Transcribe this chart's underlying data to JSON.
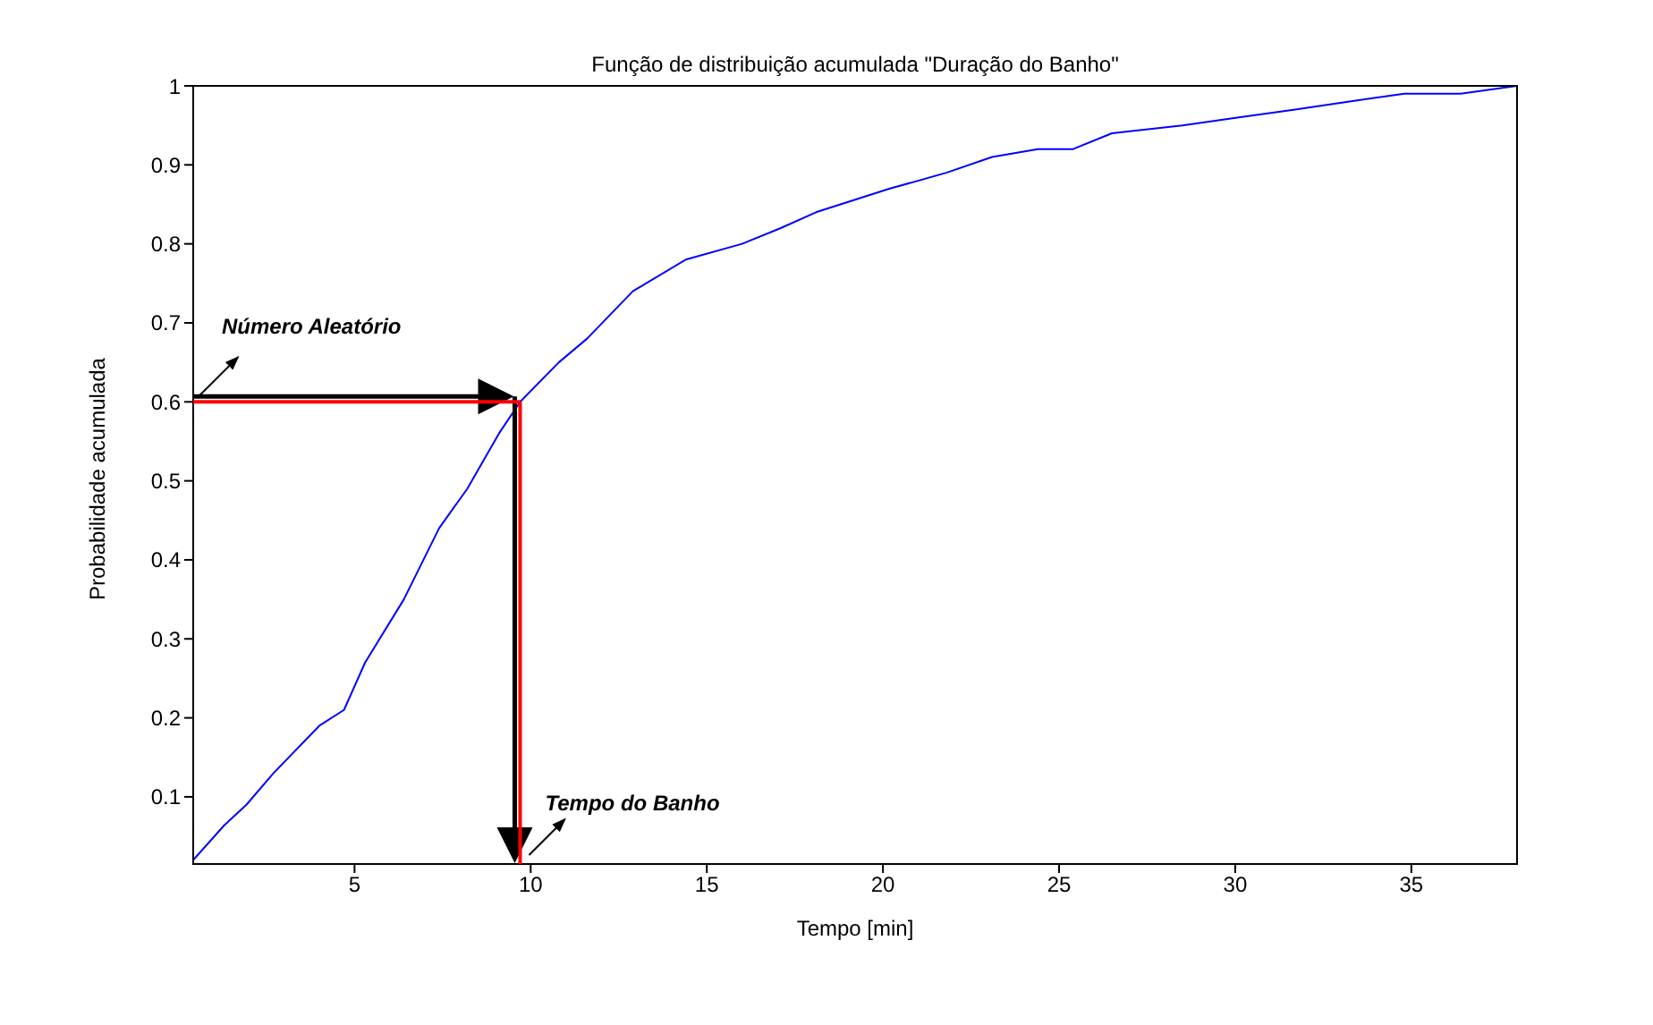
{
  "chart_data": {
    "type": "line",
    "title": "Função de distribuição acumulada \"Duração do Banho\"",
    "xlabel": "Tempo [min]",
    "ylabel": "Probabilidade acumulada",
    "x": [
      0.42,
      1.3,
      1.93,
      2.7,
      4.0,
      4.7,
      5.3,
      6.4,
      7.4,
      8.2,
      9.1,
      9.7,
      10.8,
      11.6,
      12.9,
      14.4,
      16.0,
      17.1,
      18.1,
      20.2,
      21.8,
      23.1,
      24.4,
      25.4,
      26.5,
      28.5,
      30.1,
      31.7,
      33.2,
      34.8,
      36.4,
      38
    ],
    "series": [
      {
        "color": "#0000ff",
        "values": [
          0.02,
          0.064,
          0.09,
          0.13,
          0.19,
          0.21,
          0.27,
          0.35,
          0.44,
          0.49,
          0.56,
          0.6,
          0.65,
          0.68,
          0.74,
          0.78,
          0.8,
          0.82,
          0.84,
          0.87,
          0.89,
          0.91,
          0.92,
          0.92,
          0.94,
          0.95,
          0.96,
          0.97,
          0.98,
          0.99,
          0.99,
          1.0
        ]
      }
    ],
    "xlim": [
      0.42,
      38
    ],
    "ylim": [
      0.015,
      1
    ],
    "xticks": [
      5,
      10,
      15,
      20,
      25,
      30,
      35
    ],
    "yticks": [
      0.1,
      0.2,
      0.3,
      0.4,
      0.5,
      0.6,
      0.7,
      0.8,
      0.9,
      1
    ],
    "grid": false,
    "legend": false,
    "marker": "none",
    "line_style": "solid",
    "ref_lines": [
      {
        "axis": "y",
        "value": 0.6,
        "color": "#ff0000"
      },
      {
        "axis": "x",
        "value": 9.7,
        "color": "#ff0000"
      }
    ],
    "annotations": [
      "Número Aleatório",
      "Tempo do Banho"
    ]
  }
}
